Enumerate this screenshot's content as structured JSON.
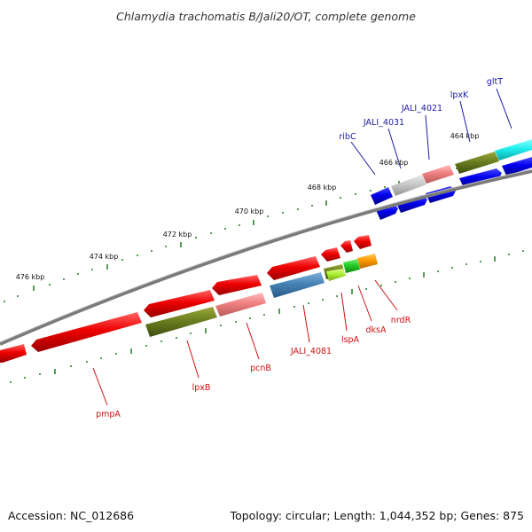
{
  "title": "Chlamydia trachomatis B/Jali20/OT, complete genome",
  "accession": "Accession: NC_012686",
  "topology": "Topology: circular; Length: 1,044,352 bp; Genes: 875",
  "scale_labels": [
    {
      "text": "464 kbp"
    },
    {
      "text": "466 kbp"
    },
    {
      "text": "468 kbp"
    },
    {
      "text": "470 kbp"
    },
    {
      "text": "472 kbp"
    },
    {
      "text": "474 kbp"
    },
    {
      "text": "476 kbp"
    }
  ],
  "colors": {
    "forward_label": "#1a1aa0",
    "reverse_label": "#cc1111",
    "backbone": "#7a7a7a",
    "tick": "#1f7a1f"
  },
  "forward_labels": [
    {
      "name": "ribC"
    },
    {
      "name": "JALI_4031"
    },
    {
      "name": "JALI_4021"
    },
    {
      "name": "lpxK"
    },
    {
      "name": "gltT"
    }
  ],
  "reverse_labels": [
    {
      "name": "pmpA"
    },
    {
      "name": "lpxB"
    },
    {
      "name": "pcnB"
    },
    {
      "name": "JALI_4081"
    },
    {
      "name": "lspA"
    },
    {
      "name": "dksA"
    },
    {
      "name": "nrdR"
    }
  ]
}
